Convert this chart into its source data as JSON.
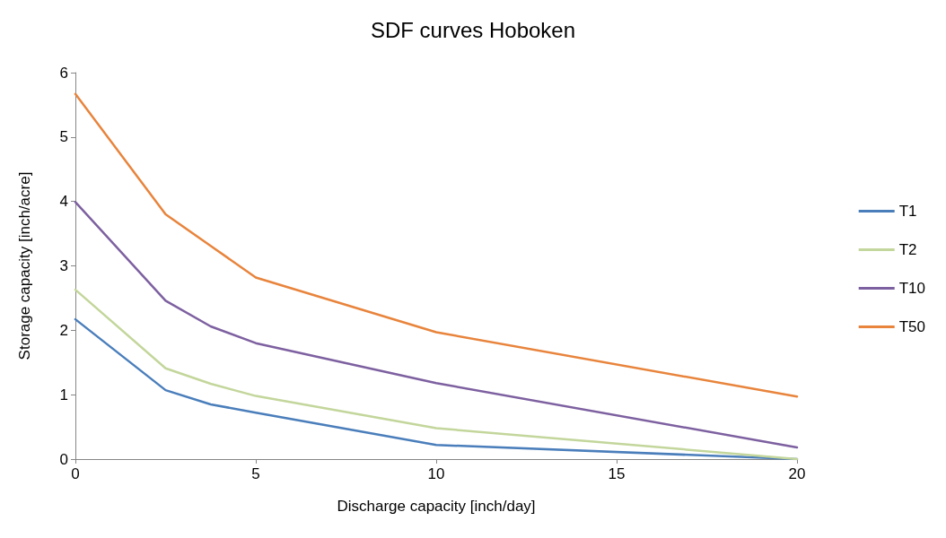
{
  "chart_data": {
    "type": "line",
    "title": "SDF curves Hoboken",
    "xlabel": "Discharge capacity [inch/day]",
    "ylabel": "Storage capacity [inch/acre]",
    "x": [
      0,
      2.5,
      3.75,
      5,
      10,
      20
    ],
    "series": [
      {
        "name": "T1",
        "color": "#4a7ebb",
        "values": [
          2.17,
          1.07,
          0.85,
          0.72,
          0.22,
          0
        ]
      },
      {
        "name": "T2",
        "color": "#c3d69b",
        "values": [
          2.63,
          1.41,
          1.17,
          0.98,
          0.48,
          0
        ]
      },
      {
        "name": "T10",
        "color": "#7d60a0",
        "values": [
          3.99,
          2.46,
          2.06,
          1.8,
          1.18,
          0.18
        ]
      },
      {
        "name": "T50",
        "color": "#e8843c",
        "values": [
          5.67,
          3.8,
          3.31,
          2.82,
          1.97,
          0.97
        ]
      }
    ],
    "xlim": [
      0,
      20
    ],
    "xticks": [
      0,
      5,
      10,
      15,
      20
    ],
    "ylim": [
      0,
      6
    ],
    "yticks": [
      0,
      1,
      2,
      3,
      4,
      5,
      6
    ],
    "grid": false,
    "legend": "right",
    "marker": "none",
    "line_style": "solid"
  }
}
